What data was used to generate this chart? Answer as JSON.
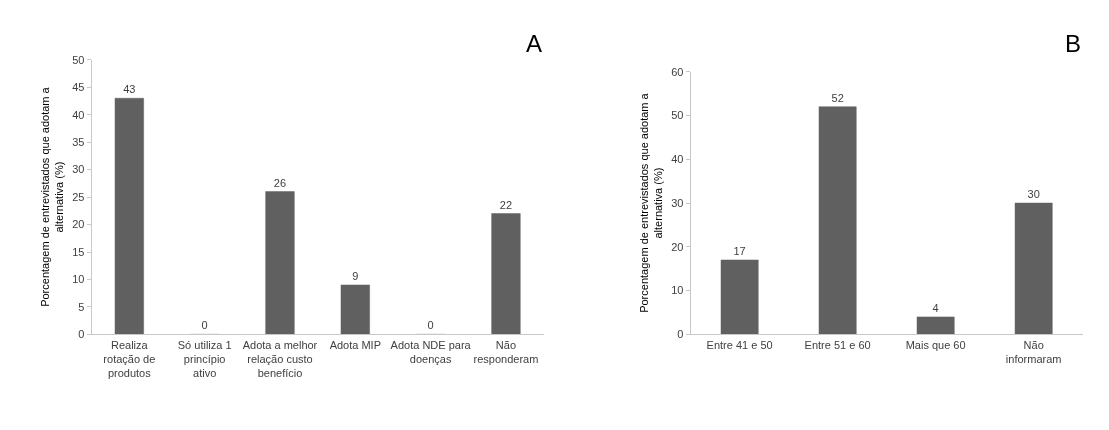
{
  "chart_data": [
    {
      "type": "bar",
      "categories": [
        "Realiza rotação de produtos",
        "Só utiliza 1 princípio ativo",
        "Adota a melhor relação custo benefício",
        "Adota MIP",
        "Adota NDE para doenças",
        "Não responderam"
      ],
      "values": [
        43,
        0,
        26,
        9,
        0,
        22
      ],
      "color": "#606060",
      "ylabel": "Porcentagem de entrevistados que adotam a alternativa (%)",
      "ylim": [
        0,
        50
      ],
      "yticks": [
        0,
        5,
        10,
        15,
        20,
        25,
        30,
        35,
        40,
        45,
        50
      ],
      "data_labels": true,
      "annotations": [
        "A"
      ]
    },
    {
      "type": "bar",
      "categories": [
        "Entre 41 e 50",
        "Entre 51 e 60",
        "Mais que 60",
        "Não informaram"
      ],
      "values": [
        17,
        52,
        4,
        30
      ],
      "color": "#606060",
      "ylabel": "Porcentagem de entrevistados que adotam a alternativa (%)",
      "ylim": [
        0,
        60
      ],
      "yticks": [
        0,
        10,
        20,
        30,
        40,
        50,
        60
      ],
      "data_labels": true,
      "annotations": [
        "B"
      ]
    }
  ]
}
